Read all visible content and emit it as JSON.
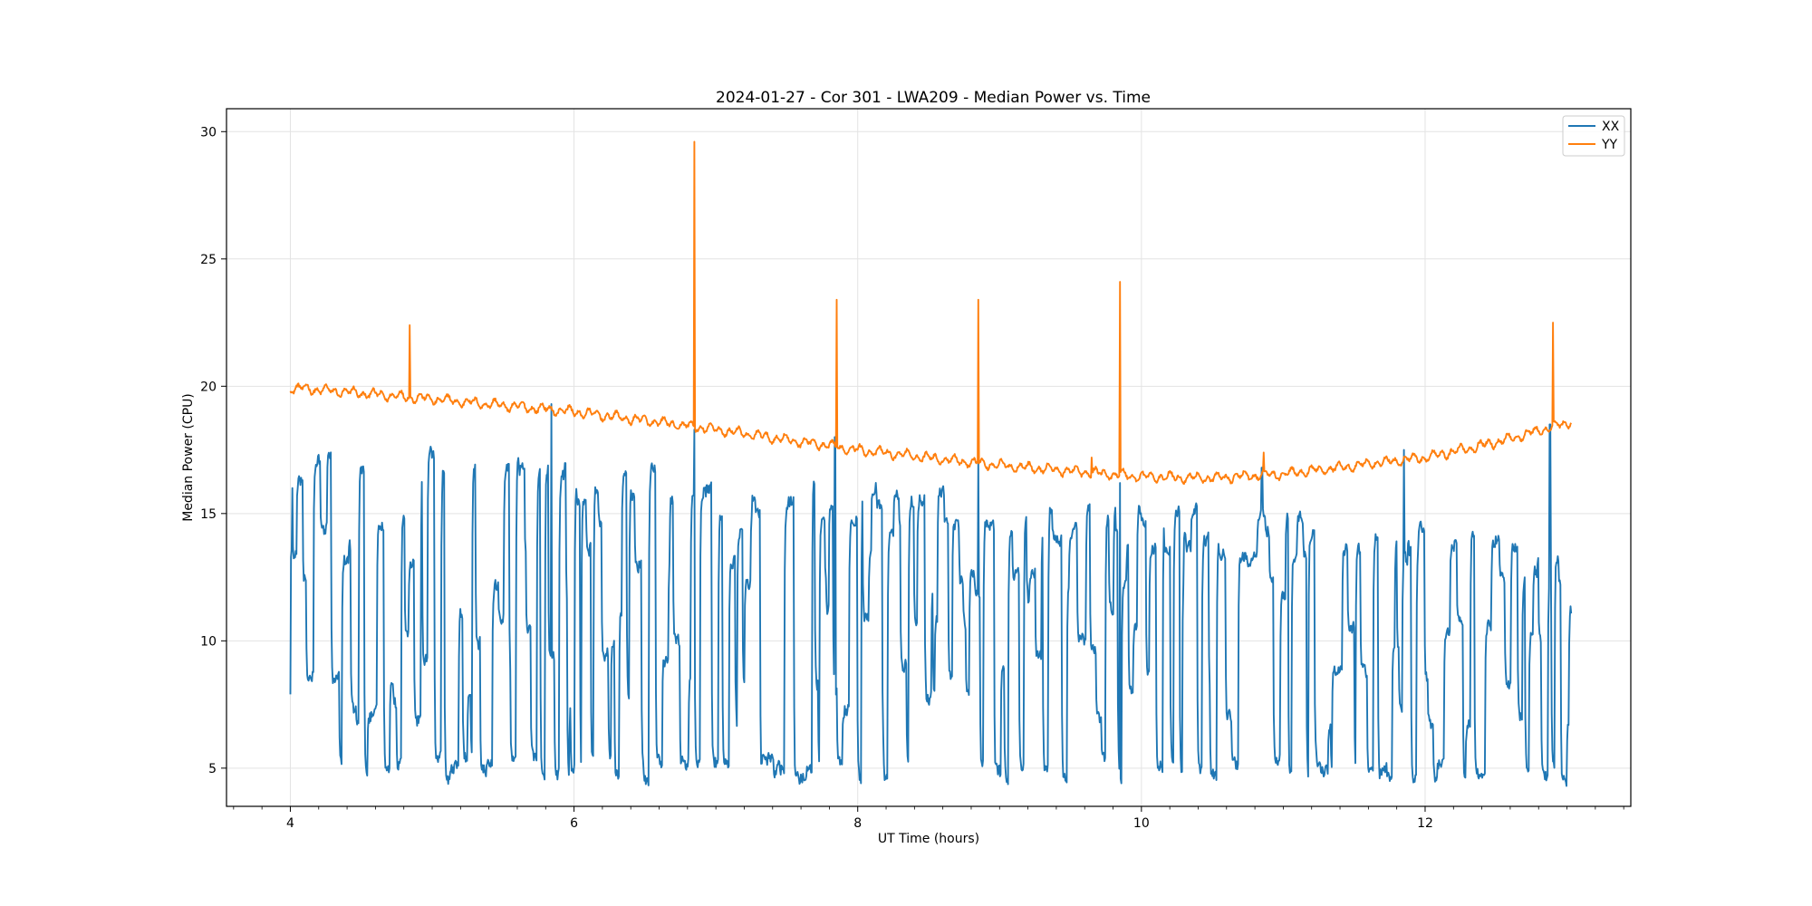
{
  "chart_data": {
    "type": "line",
    "title": "2024-01-27 - Cor 301 - LWA209 - Median Power vs. Time",
    "xlabel": "UT Time (hours)",
    "ylabel": "Median Power (CPU)",
    "xlim": [
      3.55,
      13.45
    ],
    "ylim": [
      3.5,
      30.9
    ],
    "xticks": [
      4,
      6,
      8,
      10,
      12
    ],
    "xtick_labels": [
      "4",
      "6",
      "8",
      "10",
      "12"
    ],
    "yticks": [
      5,
      10,
      15,
      20,
      25,
      30
    ],
    "ytick_labels": [
      "5",
      "10",
      "15",
      "20",
      "25",
      "30"
    ],
    "grid": true,
    "legend_position": "top-right",
    "x_start": 4.0,
    "x_end": 13.03,
    "series": [
      {
        "name": "XX",
        "color": "#1f77b4",
        "description": "rapidly oscillating between roughly 4.3 and 18",
        "envelope_hi_start": 18.0,
        "envelope_hi_end": 14.0,
        "envelope_lo": 4.5,
        "first_value": 7.9,
        "spikes": [
          {
            "x": 5.84,
            "y": 19.3
          },
          {
            "x": 6.85,
            "y": 18.3
          },
          {
            "x": 7.84,
            "y": 18.0
          },
          {
            "x": 8.85,
            "y": 17.2
          },
          {
            "x": 9.85,
            "y": 16.2
          },
          {
            "x": 10.85,
            "y": 16.8
          },
          {
            "x": 11.85,
            "y": 17.5
          },
          {
            "x": 12.88,
            "y": 18.5
          }
        ]
      },
      {
        "name": "YY",
        "color": "#ff7f0e",
        "description": "slowly varying baseline near 16.5-20 with spikes",
        "baseline": [
          {
            "x": 4.0,
            "y": 19.95
          },
          {
            "x": 5.0,
            "y": 19.5
          },
          {
            "x": 6.0,
            "y": 19.0
          },
          {
            "x": 7.0,
            "y": 18.3
          },
          {
            "x": 8.0,
            "y": 17.5
          },
          {
            "x": 9.0,
            "y": 16.9
          },
          {
            "x": 10.0,
            "y": 16.45
          },
          {
            "x": 10.5,
            "y": 16.4
          },
          {
            "x": 11.0,
            "y": 16.55
          },
          {
            "x": 12.0,
            "y": 17.2
          },
          {
            "x": 12.5,
            "y": 17.8
          },
          {
            "x": 13.03,
            "y": 18.6
          }
        ],
        "spikes": [
          {
            "x": 4.84,
            "y": 22.4
          },
          {
            "x": 6.85,
            "y": 29.6
          },
          {
            "x": 7.85,
            "y": 23.4
          },
          {
            "x": 8.85,
            "y": 23.4
          },
          {
            "x": 9.65,
            "y": 17.2
          },
          {
            "x": 9.85,
            "y": 24.1
          },
          {
            "x": 10.86,
            "y": 17.4
          },
          {
            "x": 12.9,
            "y": 22.5
          }
        ]
      }
    ]
  }
}
